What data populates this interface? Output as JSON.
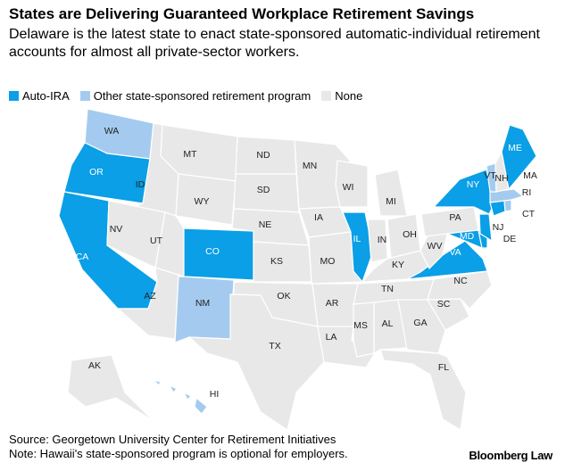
{
  "title": "States are Delivering Guaranteed Workplace Retirement Savings",
  "subtitle": "Delaware is the latest state to enact state-sponsored automatic-individual retirement accounts for almost all private-sector workers.",
  "legend": [
    {
      "label": "Auto-IRA",
      "color": "#0a9fe6"
    },
    {
      "label": "Other state-sponsored retirement program",
      "color": "#a4cbef"
    },
    {
      "label": "None",
      "color": "#e8e8e8"
    }
  ],
  "states": [
    {
      "label": "WA",
      "group": "Other state-sponsored retirement program"
    },
    {
      "label": "OR",
      "group": "Auto-IRA"
    },
    {
      "label": "CA",
      "group": "Auto-IRA"
    },
    {
      "label": "ID",
      "group": "None"
    },
    {
      "label": "NV",
      "group": "None"
    },
    {
      "label": "MT",
      "group": "None"
    },
    {
      "label": "WY",
      "group": "None"
    },
    {
      "label": "UT",
      "group": "None"
    },
    {
      "label": "AZ",
      "group": "None"
    },
    {
      "label": "CO",
      "group": "Auto-IRA"
    },
    {
      "label": "NM",
      "group": "Other state-sponsored retirement program"
    },
    {
      "label": "ND",
      "group": "None"
    },
    {
      "label": "SD",
      "group": "None"
    },
    {
      "label": "NE",
      "group": "None"
    },
    {
      "label": "KS",
      "group": "None"
    },
    {
      "label": "OK",
      "group": "None"
    },
    {
      "label": "TX",
      "group": "None"
    },
    {
      "label": "MN",
      "group": "None"
    },
    {
      "label": "IA",
      "group": "None"
    },
    {
      "label": "MO",
      "group": "None"
    },
    {
      "label": "AR",
      "group": "None"
    },
    {
      "label": "LA",
      "group": "None"
    },
    {
      "label": "WI",
      "group": "None"
    },
    {
      "label": "IL",
      "group": "Auto-IRA"
    },
    {
      "label": "MI",
      "group": "None"
    },
    {
      "label": "IN",
      "group": "None"
    },
    {
      "label": "OH",
      "group": "None"
    },
    {
      "label": "KY",
      "group": "None"
    },
    {
      "label": "TN",
      "group": "None"
    },
    {
      "label": "MS",
      "group": "None"
    },
    {
      "label": "AL",
      "group": "None"
    },
    {
      "label": "GA",
      "group": "None"
    },
    {
      "label": "FL",
      "group": "None"
    },
    {
      "label": "SC",
      "group": "None"
    },
    {
      "label": "NC",
      "group": "None"
    },
    {
      "label": "VA",
      "group": "Auto-IRA"
    },
    {
      "label": "WV",
      "group": "None"
    },
    {
      "label": "PA",
      "group": "None"
    },
    {
      "label": "NY",
      "group": "Auto-IRA"
    },
    {
      "label": "MD",
      "group": "Auto-IRA"
    },
    {
      "label": "DE",
      "group": "Auto-IRA"
    },
    {
      "label": "NJ",
      "group": "Auto-IRA"
    },
    {
      "label": "CT",
      "group": "Auto-IRA"
    },
    {
      "label": "RI",
      "group": "Other state-sponsored retirement program"
    },
    {
      "label": "MA",
      "group": "Other state-sponsored retirement program"
    },
    {
      "label": "VT",
      "group": "Other state-sponsored retirement program"
    },
    {
      "label": "NH",
      "group": "None"
    },
    {
      "label": "ME",
      "group": "Auto-IRA"
    },
    {
      "label": "AK",
      "group": "None"
    },
    {
      "label": "HI",
      "group": "Other state-sponsored retirement program"
    }
  ],
  "source": "Source: Georgetown University Center for Retirement Initiatives",
  "note": "Note: Hawaii's state-sponsored program is optional for employers.",
  "brand": "Bloomberg Law"
}
